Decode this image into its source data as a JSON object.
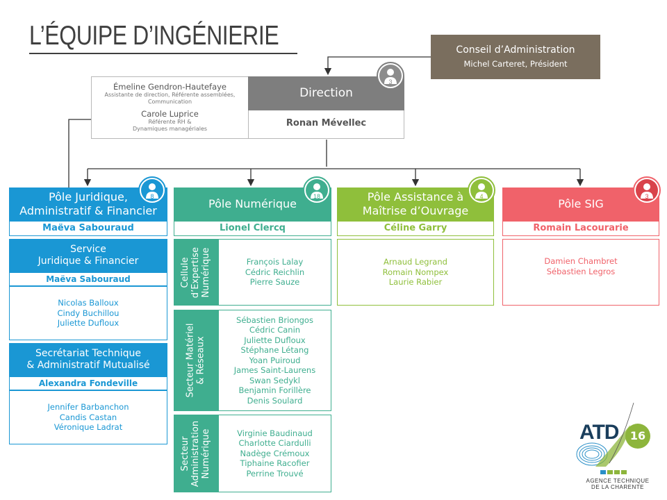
{
  "title": "L’ÉQUIPE D’INGÉNIERIE",
  "conseil": {
    "title": "Conseil d’Administration",
    "president": "Michel Carteret, Président"
  },
  "staff": {
    "person1": {
      "name": "Émeline Gendron-Hautefaye",
      "role_lines": [
        "Assistante de direction, Référente assemblées,",
        "Communication"
      ]
    },
    "person2": {
      "name": "Carole Luprice",
      "role_lines": [
        "Référente RH &",
        "Dynamiques managériales"
      ]
    }
  },
  "direction": {
    "title": "Direction",
    "head": "Ronan Mévellec",
    "count": "3"
  },
  "poles": {
    "juridique": {
      "title_lines": [
        "Pôle Juridique,",
        "Administratif & Financier"
      ],
      "lead": "Maëva Sabouraud",
      "count": "8",
      "service": {
        "title_lines": [
          "Service",
          "Juridique & Financier"
        ],
        "lead": "Maëva Sabouraud",
        "members": [
          "Nicolas Balloux",
          "Cindy Buchillou",
          "Juliette Dufloux"
        ]
      },
      "secretariat": {
        "title_lines": [
          "Secrétariat Technique",
          "& Administratif Mutualisé"
        ],
        "lead": "Alexandra Fondeville",
        "members": [
          "Jennifer Barbanchon",
          "Candis Castan",
          "Véronique Ladrat"
        ]
      }
    },
    "numerique": {
      "title": "Pôle Numérique",
      "lead": "Lionel Clercq",
      "count": "18",
      "cellule": {
        "label_lines": [
          "Cellule",
          "d’Expertise",
          "Numérique"
        ],
        "members": [
          "François Lalay",
          "Cédric Reichlin",
          "Pierre Sauze"
        ]
      },
      "materiel": {
        "label_lines": [
          "Secteur Matériel",
          "& Réseaux"
        ],
        "members": [
          "Sébastien Briongos",
          "Cédric Canin",
          "Juliette Dufloux",
          "Stéphane Létang",
          "Yoan Puiroud",
          "James Saint-Laurens",
          "Swan Sedykl",
          "Benjamin Forillère",
          "Denis Soulard"
        ]
      },
      "administration": {
        "label_lines": [
          "Secteur",
          "Administration",
          "Numérique"
        ],
        "members": [
          "Virginie Baudinaud",
          "Charlotte Ciardulli",
          "Nadège Crémoux",
          "Tiphaine Racofier",
          "Perrine Trouvé"
        ]
      }
    },
    "assistance": {
      "title_lines": [
        "Pôle Assistance à",
        "Maîtrise d’Ouvrage"
      ],
      "lead": "Céline Garry",
      "count": "4",
      "members": [
        "Arnaud Legrand",
        "Romain Nompex",
        "Laurie Rabier"
      ]
    },
    "sig": {
      "title": "Pôle SIG",
      "lead": "Romain Lacourarie",
      "count": "3",
      "members": [
        "Damien Chambret",
        "Sébastien Legros"
      ]
    }
  },
  "logo": {
    "brand": "ATD",
    "number": "16",
    "tagline_lines": [
      "AGENCE TECHNIQUE",
      "DE LA CHARENTE"
    ]
  },
  "colors": {
    "grey_head": "#7e7e7e",
    "conseil": "#7a6e5e",
    "juridique": "#1a97d4",
    "numerique": "#3fae8f",
    "assistance": "#8fbf3b",
    "sig": "#f0626a"
  },
  "icons": [
    "person-icon"
  ]
}
